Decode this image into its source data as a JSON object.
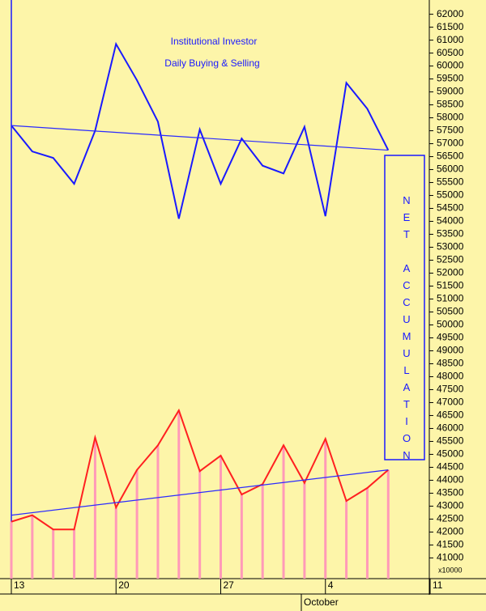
{
  "chart_data": {
    "type": "line",
    "title": "Institutional Investor",
    "subtitle": "Daily Buying & Selling",
    "annotation": "NET ACCUMULATION",
    "y_axis_note": "x10000",
    "month_label": "October",
    "categories": [
      "13",
      null,
      null,
      null,
      null,
      "20",
      null,
      null,
      null,
      null,
      "27",
      null,
      null,
      null,
      null,
      "4",
      null,
      null,
      null,
      null,
      "11"
    ],
    "series": [
      {
        "color": "#1a1aff",
        "values": [
          57700,
          56700,
          56450,
          55450,
          57500,
          60850,
          59450,
          57850,
          54100,
          57550,
          55450,
          57200,
          56150,
          55850,
          57650,
          54200,
          59350,
          58350,
          56750,
          null,
          null
        ]
      },
      {
        "color": "#ff2020",
        "stem_color": "#ff9ab8",
        "values": [
          42400,
          42650,
          42100,
          42100,
          45650,
          42950,
          44400,
          45350,
          46700,
          44350,
          44950,
          43450,
          43850,
          45350,
          43900,
          45600,
          43200,
          43700,
          44400,
          null,
          null
        ]
      }
    ],
    "trend_lines": [
      {
        "color": "#2a2aff",
        "values": [
          57700,
          56750
        ]
      },
      {
        "color": "#2a2aff",
        "values": [
          42650,
          44400
        ]
      }
    ],
    "ylim": [
      40200,
      62550
    ],
    "yticks": [
      41000,
      41500,
      42000,
      42500,
      43000,
      43500,
      44000,
      44500,
      45000,
      45500,
      46000,
      46500,
      47000,
      47500,
      48000,
      48500,
      49000,
      49500,
      50000,
      50500,
      51000,
      51500,
      52000,
      52500,
      53000,
      53500,
      54000,
      54500,
      55000,
      55500,
      56000,
      56500,
      57000,
      57500,
      58000,
      58500,
      59000,
      59500,
      60000,
      60500,
      61000,
      61500,
      62000
    ]
  }
}
